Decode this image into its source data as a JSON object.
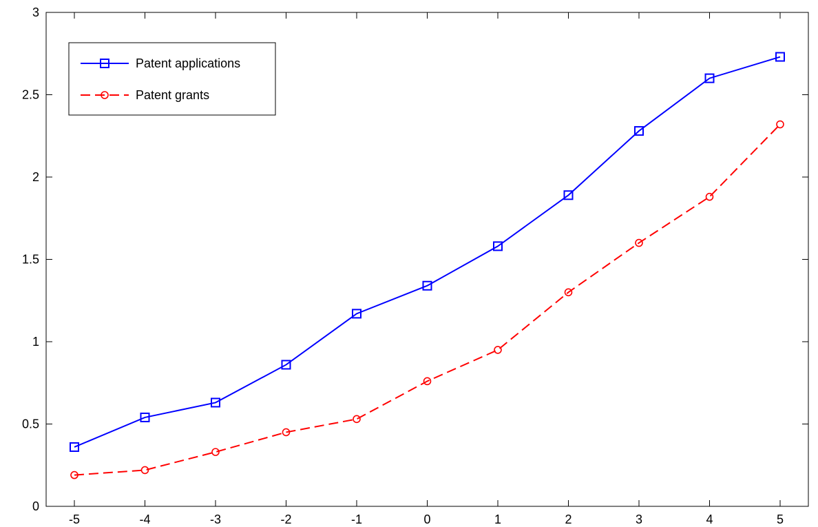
{
  "chart_data": {
    "type": "line",
    "title": "",
    "xlabel": "",
    "ylabel": "",
    "xlim": [
      -5.4,
      5.4
    ],
    "ylim": [
      0,
      3
    ],
    "x": [
      -5,
      -4,
      -3,
      -2,
      -1,
      0,
      1,
      2,
      3,
      4,
      5
    ],
    "x_ticks": [
      "-5",
      "-4",
      "-3",
      "-2",
      "-1",
      "0",
      "1",
      "2",
      "3",
      "4",
      "5"
    ],
    "y_ticks": [
      "0",
      "0.5",
      "1",
      "1.5",
      "2",
      "2.5",
      "3"
    ],
    "grid": false,
    "legend_position": "top-left",
    "series": [
      {
        "name": "Patent applications",
        "values": [
          0.36,
          0.54,
          0.63,
          0.86,
          1.17,
          1.34,
          1.58,
          1.89,
          2.28,
          2.6,
          2.73
        ],
        "color": "#0000ff",
        "line_style": "solid",
        "marker": "square"
      },
      {
        "name": "Patent grants",
        "values": [
          0.19,
          0.22,
          0.33,
          0.45,
          0.53,
          0.76,
          0.95,
          1.3,
          1.6,
          1.88,
          2.32
        ],
        "color": "#ff0000",
        "line_style": "dashed",
        "marker": "circle"
      }
    ]
  }
}
